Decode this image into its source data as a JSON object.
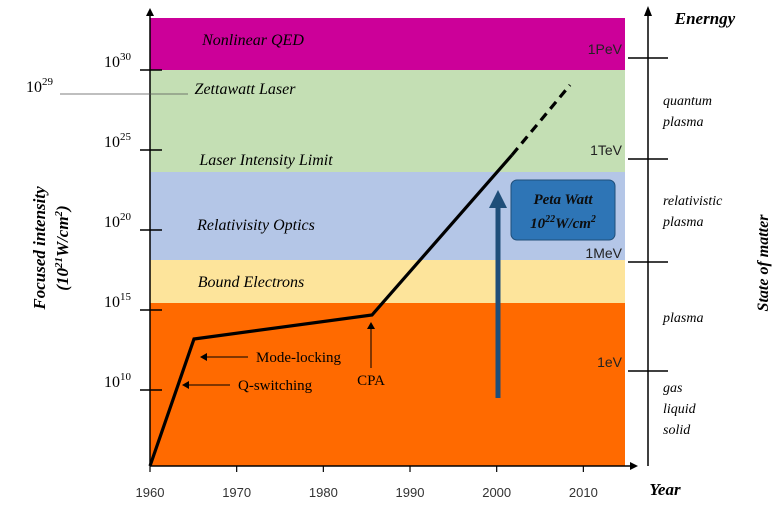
{
  "chart_data": {
    "type": "line",
    "title": "",
    "xlabel": "Year",
    "ylabel": "Focused intensity",
    "ylabel_unit_prefix": "(10",
    "ylabel_unit_exp": "21",
    "ylabel_unit_mid": "W/cm",
    "ylabel_unit_exp2": "2",
    "ylabel_unit_suffix": ")",
    "right_axis_title": "Enerngy",
    "right_axis_label": "State of matter",
    "xlim": [
      1960,
      2015
    ],
    "ylim": [
      100000.0,
      1e+34
    ],
    "y_scale": "log",
    "x_ticks": [
      1960,
      1970,
      1980,
      1990,
      2000,
      2010
    ],
    "y_ticks": [
      {
        "value": 10000000000.0,
        "base": "10",
        "exp": "10"
      },
      {
        "value": 1000000000000000.0,
        "base": "10",
        "exp": "15"
      },
      {
        "value": 1e+20,
        "base": "10",
        "exp": "20"
      },
      {
        "value": 1e+25,
        "base": "10",
        "exp": "25"
      },
      {
        "value": 1e+30,
        "base": "10",
        "exp": "30"
      }
    ],
    "extra_tick": {
      "value": 1e+29,
      "base": "10",
      "exp": "29"
    },
    "bands": [
      {
        "label": "Nonlinear QED",
        "from": 1e+30,
        "to": 1e+34,
        "color": "#cc0099"
      },
      {
        "label": "Zettawatt Laser",
        "from": 1e+25,
        "to": 1e+30,
        "color": "#c4dfb4"
      },
      {
        "label": "Laser Intensity Limit",
        "from": 1e+25,
        "to": 1e+25,
        "color": "#c4dfb4"
      },
      {
        "label": "Relativisity Optics",
        "from": 1e+19,
        "to": 1e+25,
        "color": "#b4c6e7"
      },
      {
        "label": "Bound Electrons",
        "from": 1e+16,
        "to": 1e+19,
        "color": "#fde49b"
      },
      {
        "label": "",
        "from": 100000.0,
        "to": 1e+16,
        "color": "#ff6a00"
      }
    ],
    "series": [
      {
        "values_solid": [
          {
            "x": 1960,
            "y": 100000.0
          },
          {
            "x": 1965,
            "y": 1.5e+17
          },
          {
            "x": 1985,
            "y": 1000000000000000.0
          },
          {
            "x": 2001,
            "y": 1e+25
          }
        ],
        "values_dashed": [
          {
            "x": 2001,
            "y": 1e+25
          },
          {
            "x": 2008,
            "y": 1e+29
          }
        ],
        "color": "#000000"
      }
    ],
    "energy_ticks": [
      {
        "label": "1PeV",
        "value": 1e+30
      },
      {
        "label": "1TeV",
        "value": 1e+25
      },
      {
        "label": "1MeV",
        "value": 1e+19
      },
      {
        "label": "1eV",
        "value": 100000000000.0
      }
    ],
    "state_of_matter": [
      {
        "lines": [
          "quantum",
          "plasma"
        ]
      },
      {
        "lines": [
          "relativistic",
          "plasma"
        ]
      },
      {
        "lines": [
          "plasma"
        ]
      },
      {
        "lines": [
          "gas",
          "liquid",
          "solid"
        ]
      }
    ],
    "annotations": [
      {
        "label": "Mode-locking",
        "x": 1965,
        "y": 10000000000000.0
      },
      {
        "label": "Q-switching",
        "x": 1963,
        "y": 10000000000.0
      },
      {
        "label": "CPA",
        "x": 1985,
        "y": 10000000000.0
      }
    ],
    "callout": {
      "line1": "Peta Watt",
      "line2_base": "10",
      "line2_exp": "22",
      "line2_unit": "W/cm",
      "line2_exp2": "2",
      "color": "#2e75b6",
      "arrow_color": "#1f4e79"
    }
  }
}
